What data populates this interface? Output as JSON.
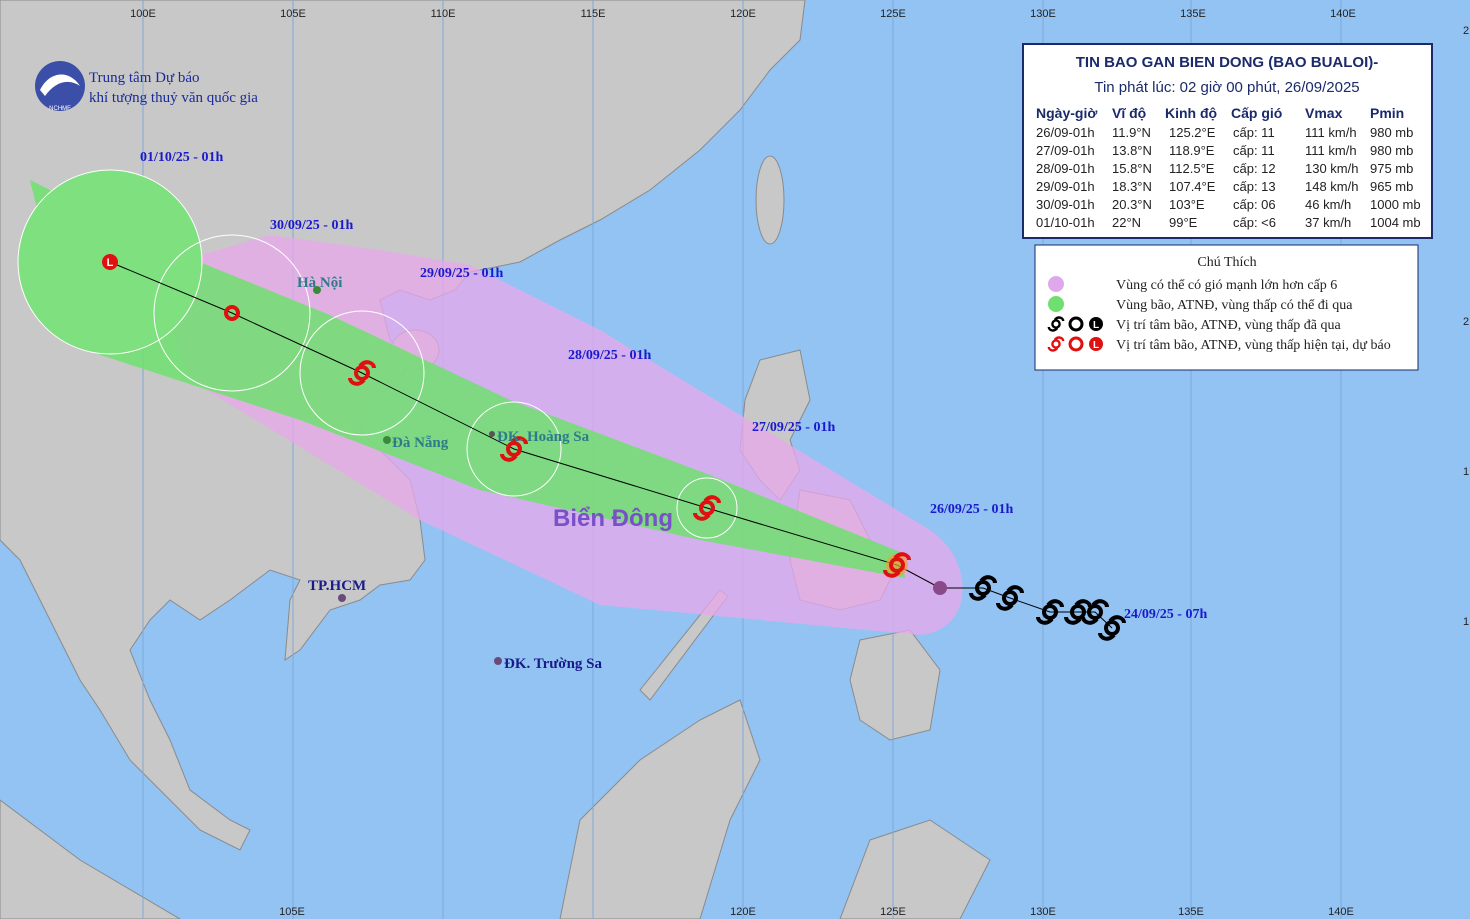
{
  "header": {
    "org_line1": "Trung tâm Dự báo",
    "org_line2": "khí tượng thuỷ văn quốc gia",
    "logo_text": "NCHMF"
  },
  "bulletin": {
    "title": "TIN BAO GAN BIEN DONG (BAO BUALOI)-",
    "subtitle": "Tin phát lúc: 02 giờ 00 phút, 26/09/2025",
    "columns": [
      "Ngày-giờ",
      "Vĩ độ",
      "Kinh độ",
      "Cấp gió",
      "Vmax",
      "Pmin"
    ],
    "rows": [
      [
        "26/09-01h",
        "11.9°N",
        "125.2°E",
        "cấp: 11",
        "111 km/h",
        "980 mb"
      ],
      [
        "27/09-01h",
        "13.8°N",
        "118.9°E",
        "cấp: 11",
        "111 km/h",
        "980 mb"
      ],
      [
        "28/09-01h",
        "15.8°N",
        "112.5°E",
        "cấp: 12",
        "130 km/h",
        "975 mb"
      ],
      [
        "29/09-01h",
        "18.3°N",
        "107.4°E",
        "cấp: 13",
        "148 km/h",
        "965 mb"
      ],
      [
        "30/09-01h",
        "20.3°N",
        "103°E",
        "cấp: 06",
        "46 km/h",
        "1000 mb"
      ],
      [
        "01/10-01h",
        "22°N",
        "99°E",
        "cấp: <6",
        "37 km/h",
        "1004 mb"
      ]
    ]
  },
  "legend": {
    "title": "Chú Thích",
    "low_symbol": "L",
    "items": [
      "Vùng có thể có gió mạnh lớn hơn cấp 6",
      "Vùng bão, ATNĐ, vùng thấp có thể đi qua",
      "Vị trí tâm bão, ATNĐ, vùng thấp đã qua",
      "Vị trí tâm bão, ATNĐ, vùng thấp hiện tại, dự báo"
    ]
  },
  "map": {
    "sea_label": "Biển Đông",
    "low_symbol": "L",
    "date_labels": [
      "01/10/25 - 01h",
      "30/09/25 - 01h",
      "29/09/25 - 01h",
      "28/09/25 - 01h",
      "27/09/25 - 01h",
      "26/09/25 - 01h",
      "24/09/25 - 07h"
    ],
    "places": [
      "Hà Nội",
      "Đà Nẵng",
      "ĐK. Hoàng Sa",
      "TP.HCM",
      "ĐK. Trường Sa"
    ],
    "top_ticks": [
      "100E",
      "105E",
      "110E",
      "115E",
      "120E",
      "125E",
      "130E",
      "135E",
      "140E"
    ],
    "bottom_ticks": [
      "105E",
      "120E",
      "125E",
      "130E",
      "135E",
      "140E"
    ],
    "right_edge_labels": [
      "2",
      "2",
      "1",
      "1"
    ]
  }
}
